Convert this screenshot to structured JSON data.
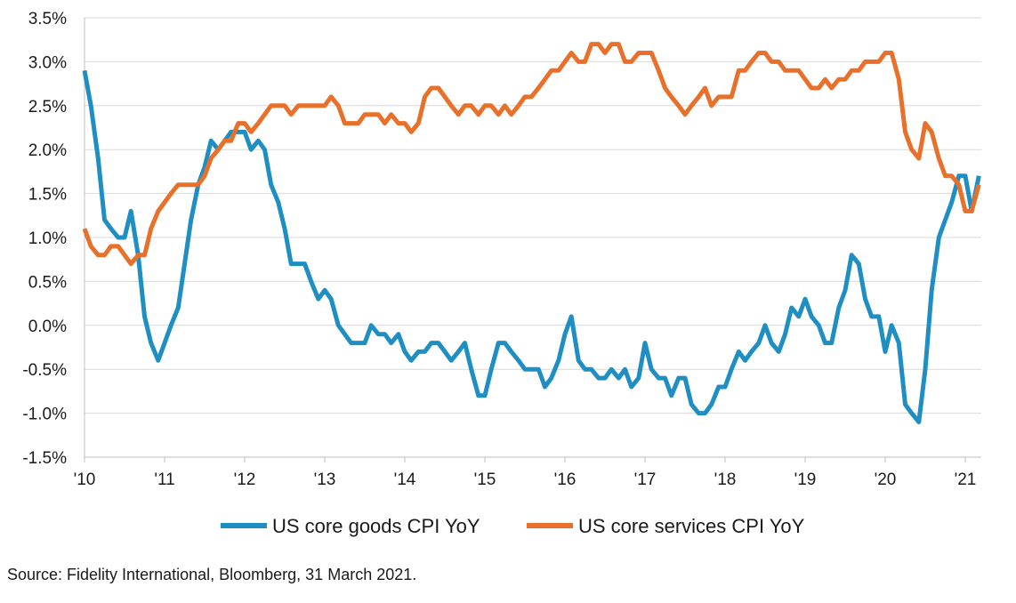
{
  "chart_data": {
    "type": "line",
    "title": "",
    "xlabel": "",
    "ylabel": "",
    "ylim": [
      -1.5,
      3.5
    ],
    "y_ticks": [
      3.5,
      3.0,
      2.5,
      2.0,
      1.5,
      1.0,
      0.5,
      0.0,
      -0.5,
      -1.0,
      -1.5
    ],
    "y_tick_labels": [
      "3.5%",
      "3.0%",
      "2.5%",
      "2.0%",
      "1.5%",
      "1.0%",
      "0.5%",
      "0.0%",
      "-0.5%",
      "-1.0%",
      "-1.5%"
    ],
    "xlim": [
      2010.0,
      2021.2
    ],
    "x_ticks": [
      2010,
      2011,
      2012,
      2013,
      2014,
      2015,
      2016,
      2017,
      2018,
      2019,
      2020,
      2021
    ],
    "x_tick_labels": [
      "'10",
      "'11",
      "'12",
      "'13",
      "'14",
      "'15",
      "'16",
      "'17",
      "'18",
      "'19",
      "'20",
      "'21"
    ],
    "grid": "horizontal",
    "legend_position": "bottom",
    "colors": {
      "goods": "#1f8fc3",
      "services": "#e8702a",
      "grid": "#d9d9d9",
      "axis": "#bfbfbf"
    },
    "series": [
      {
        "name": "US core goods CPI YoY",
        "color": "#1f8fc3",
        "points": [
          [
            2010.0,
            2.9
          ],
          [
            2010.08,
            2.5
          ],
          [
            2010.17,
            1.9
          ],
          [
            2010.25,
            1.2
          ],
          [
            2010.33,
            1.1
          ],
          [
            2010.42,
            1.0
          ],
          [
            2010.5,
            1.0
          ],
          [
            2010.58,
            1.3
          ],
          [
            2010.67,
            0.8
          ],
          [
            2010.75,
            0.1
          ],
          [
            2010.83,
            -0.2
          ],
          [
            2010.92,
            -0.4
          ],
          [
            2011.0,
            -0.2
          ],
          [
            2011.08,
            0.0
          ],
          [
            2011.17,
            0.2
          ],
          [
            2011.25,
            0.7
          ],
          [
            2011.33,
            1.2
          ],
          [
            2011.42,
            1.6
          ],
          [
            2011.5,
            1.8
          ],
          [
            2011.58,
            2.1
          ],
          [
            2011.67,
            2.0
          ],
          [
            2011.75,
            2.1
          ],
          [
            2011.83,
            2.2
          ],
          [
            2011.92,
            2.2
          ],
          [
            2012.0,
            2.2
          ],
          [
            2012.08,
            2.0
          ],
          [
            2012.17,
            2.1
          ],
          [
            2012.25,
            2.0
          ],
          [
            2012.33,
            1.6
          ],
          [
            2012.42,
            1.4
          ],
          [
            2012.5,
            1.1
          ],
          [
            2012.58,
            0.7
          ],
          [
            2012.67,
            0.7
          ],
          [
            2012.75,
            0.7
          ],
          [
            2012.83,
            0.5
          ],
          [
            2012.92,
            0.3
          ],
          [
            2013.0,
            0.4
          ],
          [
            2013.08,
            0.3
          ],
          [
            2013.17,
            0.0
          ],
          [
            2013.25,
            -0.1
          ],
          [
            2013.33,
            -0.2
          ],
          [
            2013.42,
            -0.2
          ],
          [
            2013.5,
            -0.2
          ],
          [
            2013.58,
            0.0
          ],
          [
            2013.67,
            -0.1
          ],
          [
            2013.75,
            -0.1
          ],
          [
            2013.83,
            -0.2
          ],
          [
            2013.92,
            -0.1
          ],
          [
            2014.0,
            -0.3
          ],
          [
            2014.08,
            -0.4
          ],
          [
            2014.17,
            -0.3
          ],
          [
            2014.25,
            -0.3
          ],
          [
            2014.33,
            -0.2
          ],
          [
            2014.42,
            -0.2
          ],
          [
            2014.5,
            -0.3
          ],
          [
            2014.58,
            -0.4
          ],
          [
            2014.67,
            -0.3
          ],
          [
            2014.75,
            -0.2
          ],
          [
            2014.83,
            -0.5
          ],
          [
            2014.92,
            -0.8
          ],
          [
            2015.0,
            -0.8
          ],
          [
            2015.08,
            -0.5
          ],
          [
            2015.17,
            -0.2
          ],
          [
            2015.25,
            -0.2
          ],
          [
            2015.33,
            -0.3
          ],
          [
            2015.42,
            -0.4
          ],
          [
            2015.5,
            -0.5
          ],
          [
            2015.58,
            -0.5
          ],
          [
            2015.67,
            -0.5
          ],
          [
            2015.75,
            -0.7
          ],
          [
            2015.83,
            -0.6
          ],
          [
            2015.92,
            -0.4
          ],
          [
            2016.0,
            -0.1
          ],
          [
            2016.08,
            0.1
          ],
          [
            2016.17,
            -0.4
          ],
          [
            2016.25,
            -0.5
          ],
          [
            2016.33,
            -0.5
          ],
          [
            2016.42,
            -0.6
          ],
          [
            2016.5,
            -0.6
          ],
          [
            2016.58,
            -0.5
          ],
          [
            2016.67,
            -0.6
          ],
          [
            2016.75,
            -0.5
          ],
          [
            2016.83,
            -0.7
          ],
          [
            2016.92,
            -0.6
          ],
          [
            2017.0,
            -0.2
          ],
          [
            2017.08,
            -0.5
          ],
          [
            2017.17,
            -0.6
          ],
          [
            2017.25,
            -0.6
          ],
          [
            2017.33,
            -0.8
          ],
          [
            2017.42,
            -0.6
          ],
          [
            2017.5,
            -0.6
          ],
          [
            2017.58,
            -0.9
          ],
          [
            2017.67,
            -1.0
          ],
          [
            2017.75,
            -1.0
          ],
          [
            2017.83,
            -0.9
          ],
          [
            2017.92,
            -0.7
          ],
          [
            2018.0,
            -0.7
          ],
          [
            2018.08,
            -0.5
          ],
          [
            2018.17,
            -0.3
          ],
          [
            2018.25,
            -0.4
          ],
          [
            2018.33,
            -0.3
          ],
          [
            2018.42,
            -0.2
          ],
          [
            2018.5,
            0.0
          ],
          [
            2018.58,
            -0.2
          ],
          [
            2018.67,
            -0.3
          ],
          [
            2018.75,
            -0.1
          ],
          [
            2018.83,
            0.2
          ],
          [
            2018.92,
            0.1
          ],
          [
            2019.0,
            0.3
          ],
          [
            2019.08,
            0.1
          ],
          [
            2019.17,
            0.0
          ],
          [
            2019.25,
            -0.2
          ],
          [
            2019.33,
            -0.2
          ],
          [
            2019.42,
            0.2
          ],
          [
            2019.5,
            0.4
          ],
          [
            2019.58,
            0.8
          ],
          [
            2019.67,
            0.7
          ],
          [
            2019.75,
            0.3
          ],
          [
            2019.83,
            0.1
          ],
          [
            2019.92,
            0.1
          ],
          [
            2020.0,
            -0.3
          ],
          [
            2020.08,
            0.0
          ],
          [
            2020.17,
            -0.2
          ],
          [
            2020.25,
            -0.9
          ],
          [
            2020.33,
            -1.0
          ],
          [
            2020.42,
            -1.1
          ],
          [
            2020.5,
            -0.5
          ],
          [
            2020.58,
            0.4
          ],
          [
            2020.67,
            1.0
          ],
          [
            2020.75,
            1.2
          ],
          [
            2020.83,
            1.4
          ],
          [
            2020.92,
            1.7
          ],
          [
            2021.0,
            1.7
          ],
          [
            2021.08,
            1.3
          ],
          [
            2021.17,
            1.7
          ]
        ]
      },
      {
        "name": "US core services CPI YoY",
        "color": "#e8702a",
        "points": [
          [
            2010.0,
            1.1
          ],
          [
            2010.08,
            0.9
          ],
          [
            2010.17,
            0.8
          ],
          [
            2010.25,
            0.8
          ],
          [
            2010.33,
            0.9
          ],
          [
            2010.42,
            0.9
          ],
          [
            2010.5,
            0.8
          ],
          [
            2010.58,
            0.7
          ],
          [
            2010.67,
            0.8
          ],
          [
            2010.75,
            0.8
          ],
          [
            2010.83,
            1.1
          ],
          [
            2010.92,
            1.3
          ],
          [
            2011.0,
            1.4
          ],
          [
            2011.08,
            1.5
          ],
          [
            2011.17,
            1.6
          ],
          [
            2011.25,
            1.6
          ],
          [
            2011.33,
            1.6
          ],
          [
            2011.42,
            1.6
          ],
          [
            2011.5,
            1.7
          ],
          [
            2011.58,
            1.9
          ],
          [
            2011.67,
            2.0
          ],
          [
            2011.75,
            2.1
          ],
          [
            2011.83,
            2.1
          ],
          [
            2011.92,
            2.3
          ],
          [
            2012.0,
            2.3
          ],
          [
            2012.08,
            2.2
          ],
          [
            2012.17,
            2.3
          ],
          [
            2012.25,
            2.4
          ],
          [
            2012.33,
            2.5
          ],
          [
            2012.42,
            2.5
          ],
          [
            2012.5,
            2.5
          ],
          [
            2012.58,
            2.4
          ],
          [
            2012.67,
            2.5
          ],
          [
            2012.75,
            2.5
          ],
          [
            2012.83,
            2.5
          ],
          [
            2012.92,
            2.5
          ],
          [
            2013.0,
            2.5
          ],
          [
            2013.08,
            2.6
          ],
          [
            2013.17,
            2.5
          ],
          [
            2013.25,
            2.3
          ],
          [
            2013.33,
            2.3
          ],
          [
            2013.42,
            2.3
          ],
          [
            2013.5,
            2.4
          ],
          [
            2013.58,
            2.4
          ],
          [
            2013.67,
            2.4
          ],
          [
            2013.75,
            2.3
          ],
          [
            2013.83,
            2.4
          ],
          [
            2013.92,
            2.3
          ],
          [
            2014.0,
            2.3
          ],
          [
            2014.08,
            2.2
          ],
          [
            2014.17,
            2.3
          ],
          [
            2014.25,
            2.6
          ],
          [
            2014.33,
            2.7
          ],
          [
            2014.42,
            2.7
          ],
          [
            2014.5,
            2.6
          ],
          [
            2014.58,
            2.5
          ],
          [
            2014.67,
            2.4
          ],
          [
            2014.75,
            2.5
          ],
          [
            2014.83,
            2.5
          ],
          [
            2014.92,
            2.4
          ],
          [
            2015.0,
            2.5
          ],
          [
            2015.08,
            2.5
          ],
          [
            2015.17,
            2.4
          ],
          [
            2015.25,
            2.5
          ],
          [
            2015.33,
            2.4
          ],
          [
            2015.42,
            2.5
          ],
          [
            2015.5,
            2.6
          ],
          [
            2015.58,
            2.6
          ],
          [
            2015.67,
            2.7
          ],
          [
            2015.75,
            2.8
          ],
          [
            2015.83,
            2.9
          ],
          [
            2015.92,
            2.9
          ],
          [
            2016.0,
            3.0
          ],
          [
            2016.08,
            3.1
          ],
          [
            2016.17,
            3.0
          ],
          [
            2016.25,
            3.0
          ],
          [
            2016.33,
            3.2
          ],
          [
            2016.42,
            3.2
          ],
          [
            2016.5,
            3.1
          ],
          [
            2016.58,
            3.2
          ],
          [
            2016.67,
            3.2
          ],
          [
            2016.75,
            3.0
          ],
          [
            2016.83,
            3.0
          ],
          [
            2016.92,
            3.1
          ],
          [
            2017.0,
            3.1
          ],
          [
            2017.08,
            3.1
          ],
          [
            2017.17,
            2.9
          ],
          [
            2017.25,
            2.7
          ],
          [
            2017.33,
            2.6
          ],
          [
            2017.42,
            2.5
          ],
          [
            2017.5,
            2.4
          ],
          [
            2017.58,
            2.5
          ],
          [
            2017.67,
            2.6
          ],
          [
            2017.75,
            2.7
          ],
          [
            2017.83,
            2.5
          ],
          [
            2017.92,
            2.6
          ],
          [
            2018.0,
            2.6
          ],
          [
            2018.08,
            2.6
          ],
          [
            2018.17,
            2.9
          ],
          [
            2018.25,
            2.9
          ],
          [
            2018.33,
            3.0
          ],
          [
            2018.42,
            3.1
          ],
          [
            2018.5,
            3.1
          ],
          [
            2018.58,
            3.0
          ],
          [
            2018.67,
            3.0
          ],
          [
            2018.75,
            2.9
          ],
          [
            2018.83,
            2.9
          ],
          [
            2018.92,
            2.9
          ],
          [
            2019.0,
            2.8
          ],
          [
            2019.08,
            2.7
          ],
          [
            2019.17,
            2.7
          ],
          [
            2019.25,
            2.8
          ],
          [
            2019.33,
            2.7
          ],
          [
            2019.42,
            2.8
          ],
          [
            2019.5,
            2.8
          ],
          [
            2019.58,
            2.9
          ],
          [
            2019.67,
            2.9
          ],
          [
            2019.75,
            3.0
          ],
          [
            2019.83,
            3.0
          ],
          [
            2019.92,
            3.0
          ],
          [
            2020.0,
            3.1
          ],
          [
            2020.08,
            3.1
          ],
          [
            2020.17,
            2.8
          ],
          [
            2020.25,
            2.2
          ],
          [
            2020.33,
            2.0
          ],
          [
            2020.42,
            1.9
          ],
          [
            2020.5,
            2.3
          ],
          [
            2020.58,
            2.2
          ],
          [
            2020.67,
            1.9
          ],
          [
            2020.75,
            1.7
          ],
          [
            2020.83,
            1.7
          ],
          [
            2020.92,
            1.6
          ],
          [
            2021.0,
            1.3
          ],
          [
            2021.08,
            1.3
          ],
          [
            2021.17,
            1.6
          ]
        ]
      }
    ]
  },
  "source_text": "Source: Fidelity International, Bloomberg, 31 March 2021."
}
